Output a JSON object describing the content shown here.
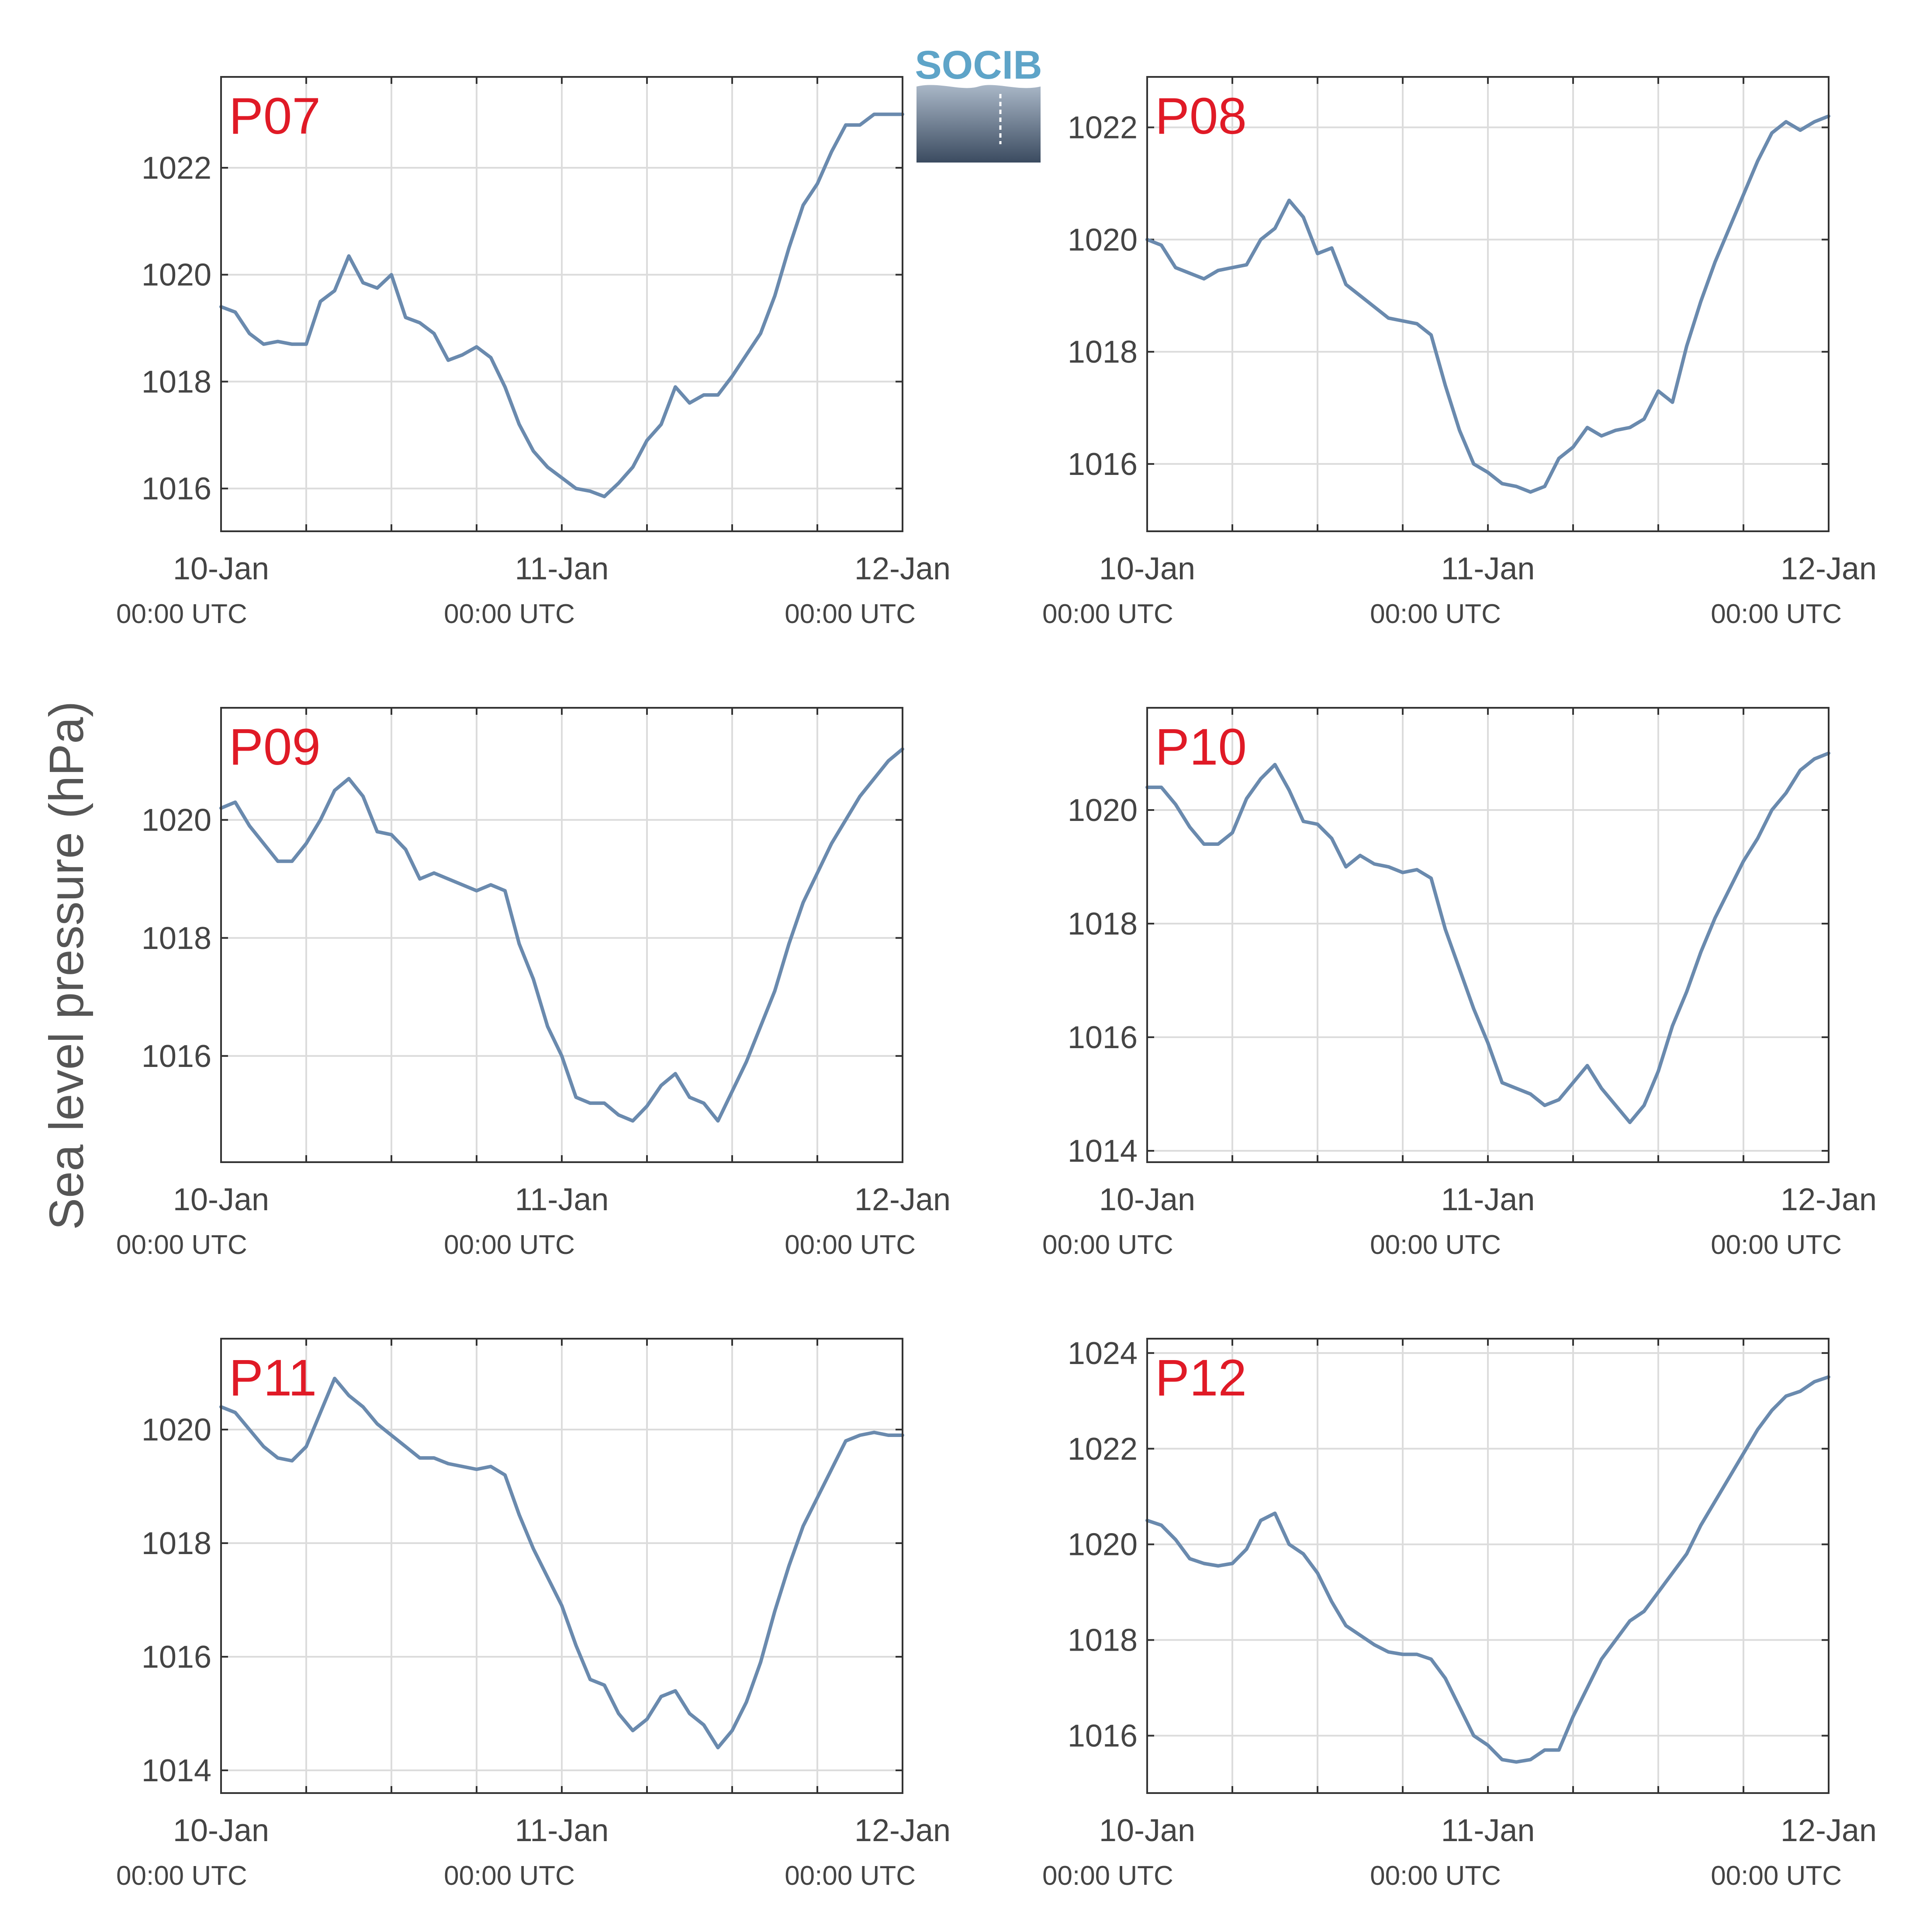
{
  "figure": {
    "ylabel": "Sea level pressure (hPa)",
    "logo_text": "SOCIB",
    "line_color": "#6a8aae",
    "label_color": "#e01a26",
    "x_ticks": [
      {
        "day": "10-Jan",
        "time": "00:00 UTC"
      },
      {
        "day": "11-Jan",
        "time": "00:00 UTC"
      },
      {
        "day": "12-Jan",
        "time": "00:00 UTC"
      }
    ]
  },
  "chart_data": [
    {
      "type": "line",
      "label": "P07",
      "xlim": [
        0,
        48
      ],
      "ylim": [
        1015.2,
        1023.7
      ],
      "yticks": [
        1016,
        1018,
        1020,
        1022
      ],
      "x": [
        0,
        1,
        2,
        3,
        4,
        5,
        6,
        7,
        8,
        9,
        10,
        11,
        12,
        13,
        14,
        15,
        16,
        17,
        18,
        19,
        20,
        21,
        22,
        23,
        24,
        25,
        26,
        27,
        28,
        29,
        30,
        31,
        32,
        33,
        34,
        35,
        36,
        37,
        38,
        39,
        40,
        41,
        42,
        43,
        44,
        45,
        46,
        47,
        48
      ],
      "y": [
        1019.4,
        1019.3,
        1018.9,
        1018.7,
        1018.75,
        1018.7,
        1018.7,
        1019.5,
        1019.7,
        1020.35,
        1019.85,
        1019.75,
        1020.0,
        1019.2,
        1019.1,
        1018.9,
        1018.4,
        1018.5,
        1018.65,
        1018.45,
        1017.9,
        1017.2,
        1016.7,
        1016.4,
        1016.2,
        1016.0,
        1015.95,
        1015.85,
        1016.1,
        1016.4,
        1016.9,
        1017.2,
        1017.9,
        1017.6,
        1017.75,
        1017.75,
        1018.1,
        1018.5,
        1018.9,
        1019.6,
        1020.5,
        1021.3,
        1021.7,
        1022.3,
        1022.8,
        1022.8,
        1023.0,
        1023.0,
        1023.0
      ]
    },
    {
      "type": "line",
      "label": "P08",
      "xlim": [
        0,
        48
      ],
      "ylim": [
        1014.8,
        1022.9
      ],
      "yticks": [
        1016,
        1018,
        1020,
        1022
      ],
      "x": [
        0,
        1,
        2,
        3,
        4,
        5,
        6,
        7,
        8,
        9,
        10,
        11,
        12,
        13,
        14,
        15,
        16,
        17,
        18,
        19,
        20,
        21,
        22,
        23,
        24,
        25,
        26,
        27,
        28,
        29,
        30,
        31,
        32,
        33,
        34,
        35,
        36,
        37,
        38,
        39,
        40,
        41,
        42,
        43,
        44,
        45,
        46,
        47,
        48
      ],
      "y": [
        1020.0,
        1019.9,
        1019.5,
        1019.4,
        1019.3,
        1019.45,
        1019.5,
        1019.55,
        1020.0,
        1020.2,
        1020.7,
        1020.4,
        1019.75,
        1019.85,
        1019.2,
        1019.0,
        1018.8,
        1018.6,
        1018.55,
        1018.5,
        1018.3,
        1017.4,
        1016.6,
        1016.0,
        1015.85,
        1015.65,
        1015.6,
        1015.5,
        1015.6,
        1016.1,
        1016.3,
        1016.65,
        1016.5,
        1016.6,
        1016.65,
        1016.8,
        1017.3,
        1017.1,
        1018.1,
        1018.9,
        1019.6,
        1020.2,
        1020.8,
        1021.4,
        1021.9,
        1022.1,
        1021.95,
        1022.1,
        1022.2
      ]
    },
    {
      "type": "line",
      "label": "P09",
      "xlim": [
        0,
        48
      ],
      "ylim": [
        1014.2,
        1021.9
      ],
      "yticks": [
        1016,
        1018,
        1020
      ],
      "x": [
        0,
        1,
        2,
        3,
        4,
        5,
        6,
        7,
        8,
        9,
        10,
        11,
        12,
        13,
        14,
        15,
        16,
        17,
        18,
        19,
        20,
        21,
        22,
        23,
        24,
        25,
        26,
        27,
        28,
        29,
        30,
        31,
        32,
        33,
        34,
        35,
        36,
        37,
        38,
        39,
        40,
        41,
        42,
        43,
        44,
        45,
        46,
        47,
        48
      ],
      "y": [
        1020.2,
        1020.3,
        1019.9,
        1019.6,
        1019.3,
        1019.3,
        1019.6,
        1020.0,
        1020.5,
        1020.7,
        1020.4,
        1019.8,
        1019.75,
        1019.5,
        1019.0,
        1019.1,
        1019.0,
        1018.9,
        1018.8,
        1018.9,
        1018.8,
        1017.9,
        1017.3,
        1016.5,
        1016.0,
        1015.3,
        1015.2,
        1015.2,
        1015.0,
        1014.9,
        1015.15,
        1015.5,
        1015.7,
        1015.3,
        1015.2,
        1014.9,
        1015.4,
        1015.9,
        1016.5,
        1017.1,
        1017.9,
        1018.6,
        1019.1,
        1019.6,
        1020.0,
        1020.4,
        1020.7,
        1021.0,
        1021.2
      ]
    },
    {
      "type": "line",
      "label": "P10",
      "xlim": [
        0,
        48
      ],
      "ylim": [
        1013.8,
        1021.8
      ],
      "yticks": [
        1014,
        1016,
        1018,
        1020
      ],
      "x": [
        0,
        1,
        2,
        3,
        4,
        5,
        6,
        7,
        8,
        9,
        10,
        11,
        12,
        13,
        14,
        15,
        16,
        17,
        18,
        19,
        20,
        21,
        22,
        23,
        24,
        25,
        26,
        27,
        28,
        29,
        30,
        31,
        32,
        33,
        34,
        35,
        36,
        37,
        38,
        39,
        40,
        41,
        42,
        43,
        44,
        45,
        46,
        47,
        48
      ],
      "y": [
        1020.4,
        1020.4,
        1020.1,
        1019.7,
        1019.4,
        1019.4,
        1019.6,
        1020.2,
        1020.55,
        1020.8,
        1020.35,
        1019.8,
        1019.75,
        1019.5,
        1019.0,
        1019.2,
        1019.05,
        1019.0,
        1018.9,
        1018.95,
        1018.8,
        1017.9,
        1017.2,
        1016.5,
        1015.9,
        1015.2,
        1015.1,
        1015.0,
        1014.8,
        1014.9,
        1015.2,
        1015.5,
        1015.1,
        1014.8,
        1014.5,
        1014.8,
        1015.4,
        1016.2,
        1016.8,
        1017.5,
        1018.1,
        1018.6,
        1019.1,
        1019.5,
        1020.0,
        1020.3,
        1020.7,
        1020.9,
        1021.0
      ]
    },
    {
      "type": "line",
      "label": "P11",
      "xlim": [
        0,
        48
      ],
      "ylim": [
        1013.6,
        1021.6
      ],
      "yticks": [
        1014,
        1016,
        1018,
        1020
      ],
      "x": [
        0,
        1,
        2,
        3,
        4,
        5,
        6,
        7,
        8,
        9,
        10,
        11,
        12,
        13,
        14,
        15,
        16,
        17,
        18,
        19,
        20,
        21,
        22,
        23,
        24,
        25,
        26,
        27,
        28,
        29,
        30,
        31,
        32,
        33,
        34,
        35,
        36,
        37,
        38,
        39,
        40,
        41,
        42,
        43,
        44,
        45,
        46,
        47,
        48
      ],
      "y": [
        1020.4,
        1020.3,
        1020.0,
        1019.7,
        1019.5,
        1019.45,
        1019.7,
        1020.3,
        1020.9,
        1020.6,
        1020.4,
        1020.1,
        1019.9,
        1019.7,
        1019.5,
        1019.5,
        1019.4,
        1019.35,
        1019.3,
        1019.35,
        1019.2,
        1018.5,
        1017.9,
        1017.4,
        1016.9,
        1016.2,
        1015.6,
        1015.5,
        1015.0,
        1014.7,
        1014.9,
        1015.3,
        1015.4,
        1015.0,
        1014.8,
        1014.4,
        1014.7,
        1015.2,
        1015.9,
        1016.8,
        1017.6,
        1018.3,
        1018.8,
        1019.3,
        1019.8,
        1019.9,
        1019.95,
        1019.9,
        1019.9
      ]
    },
    {
      "type": "line",
      "label": "P12",
      "xlim": [
        0,
        48
      ],
      "ylim": [
        1014.8,
        1024.3
      ],
      "yticks": [
        1016,
        1018,
        1020,
        1022,
        1024
      ],
      "x": [
        0,
        1,
        2,
        3,
        4,
        5,
        6,
        7,
        8,
        9,
        10,
        11,
        12,
        13,
        14,
        15,
        16,
        17,
        18,
        19,
        20,
        21,
        22,
        23,
        24,
        25,
        26,
        27,
        28,
        29,
        30,
        31,
        32,
        33,
        34,
        35,
        36,
        37,
        38,
        39,
        40,
        41,
        42,
        43,
        44,
        45,
        46,
        47,
        48
      ],
      "y": [
        1020.5,
        1020.4,
        1020.1,
        1019.7,
        1019.6,
        1019.55,
        1019.6,
        1019.9,
        1020.5,
        1020.65,
        1020.0,
        1019.8,
        1019.4,
        1018.8,
        1018.3,
        1018.1,
        1017.9,
        1017.75,
        1017.7,
        1017.7,
        1017.6,
        1017.2,
        1016.6,
        1016.0,
        1015.8,
        1015.5,
        1015.45,
        1015.5,
        1015.7,
        1015.7,
        1016.4,
        1017.0,
        1017.6,
        1018.0,
        1018.4,
        1018.6,
        1019.0,
        1019.4,
        1019.8,
        1020.4,
        1020.9,
        1021.4,
        1021.9,
        1022.4,
        1022.8,
        1023.1,
        1023.2,
        1023.4,
        1023.5
      ]
    }
  ]
}
